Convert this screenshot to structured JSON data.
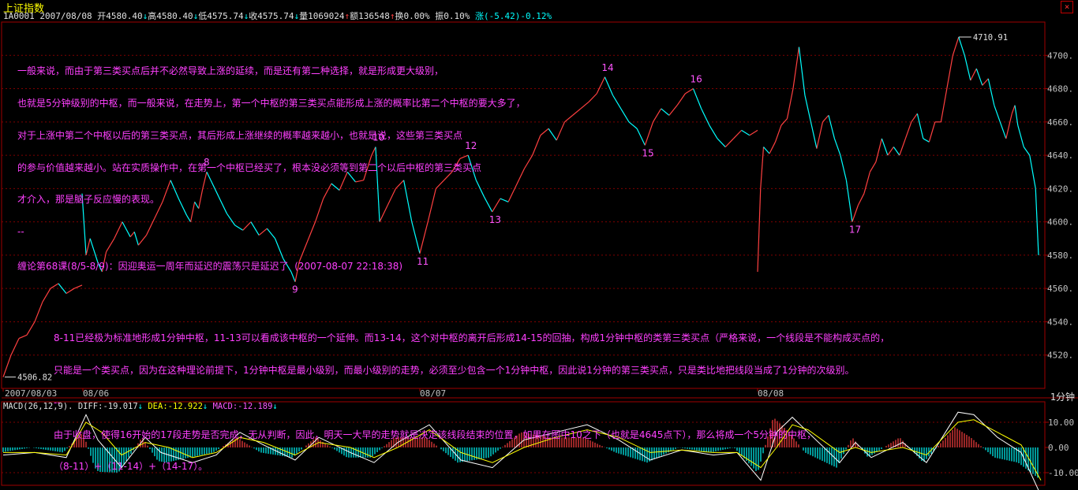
{
  "window": {
    "title": "上证指数",
    "close_glyph": "×"
  },
  "info_bar": {
    "code": "1A0001",
    "date": "2007/08/08",
    "open": "开4580.40",
    "high": "高4580.40",
    "low": "低4575.74",
    "close": "收4575.74",
    "volume": "量1069024",
    "amount": "额136548",
    "turnover": "换0.00%",
    "amplitude": "振0.10%",
    "change": "涨(-5.42)-0.12%"
  },
  "annotations": {
    "top_lines": [
      "一般来说，而由于第三类买点后并不必然导致上涨的延续，而是还有第二种选择，就是形成更大级别，",
      "也就是5分钟级别的中枢，而一般来说，在走势上，第一个中枢的第三类买点能形成上涨的概率比第二个中枢的要大多了，",
      "对于上涨中第二个中枢以后的第三类买点，其后形成上涨继续的概率越来越小，也就是说，这些第三类买点",
      "的参与价值越来越小。站在实质操作中，在第一个中枢已经买了，根本没必须等到第二个以后中枢的第三类买点",
      "才介入，那是脑子反应慢的表现。",
      "--",
      "缠论第68课(8/5-8/9)：因迎奥运一周年而延迟的震荡只是延迟了  (2007-08-07 22:18:38)"
    ],
    "bottom_lines": [
      "8-11已经极为标准地形成1分钟中枢，11-13可以看成该中枢的一个延伸。而13-14，这个对中枢的离开后形成14-15的回抽，构成1分钟中枢的类第三类买点（严格来说，一个线段是不能构成买点的，",
      "只能是一个类买点，因为在这种理论前提下，1分钟中枢是最小级别，而最小级别的走势，必须至少包含一个1分钟中枢，因此说1分钟的第三类买点，只是类比地把线段当成了1分钟的次级别。",
      "--",
      "由于收盘，使得16开始的17段走势是否完成，无从判断，因此，明天一大早的走势就是决定该线段结束的位置，如果在图中10之下（也就是4645点下），那么将成一个5分钟的中枢，",
      "（8-11）+（11-14）+（14-17）。"
    ]
  },
  "period_label": "1分钟",
  "macd": {
    "label": "MACD(26,12,9).",
    "diff": "DIFF:-19.017",
    "dea": "DEA:-12.922",
    "macd": "MACD:-12.189",
    "arrow_down": "↓",
    "ticks": [
      "10.00",
      "0.00",
      "-10.00"
    ]
  },
  "colors": {
    "up": "#ff4040",
    "down": "#00ffff",
    "text": "#ff40ff",
    "dea": "#ffff00",
    "diff": "#ffffff"
  },
  "chart_data": {
    "type": "line",
    "ylim": [
      4500,
      4720
    ],
    "yticks": [
      4520,
      4540,
      4560,
      4580,
      4600,
      4620,
      4640,
      4660,
      4680,
      4700
    ],
    "ytick_labels": [
      "4520.",
      "4540.",
      "4560.",
      "4580.",
      "4600.",
      "4620.",
      "4640.",
      "4660.",
      "4680.",
      "4700."
    ],
    "x_labels": [
      "2007/08/03",
      "08/06",
      "08/07",
      "08/08"
    ],
    "max_label": "4710.91",
    "min_label": "4506.82",
    "sessions": [
      [
        [
          0,
          4506.8
        ],
        [
          2,
          4520
        ],
        [
          4,
          4530
        ],
        [
          6,
          4532
        ],
        [
          8,
          4540
        ],
        [
          10,
          4552
        ],
        [
          12,
          4560
        ],
        [
          14,
          4563
        ],
        [
          16,
          4557
        ],
        [
          18,
          4560
        ],
        [
          20,
          4562
        ]
      ],
      [
        [
          0,
          4617
        ],
        [
          1,
          4580
        ],
        [
          2,
          4590
        ],
        [
          4,
          4575
        ],
        [
          5,
          4570
        ],
        [
          6,
          4582
        ],
        [
          8,
          4590
        ],
        [
          10,
          4600
        ],
        [
          12,
          4591
        ],
        [
          13,
          4594
        ],
        [
          14,
          4586
        ],
        [
          16,
          4592
        ],
        [
          18,
          4602
        ],
        [
          20,
          4612
        ],
        [
          22,
          4625
        ],
        [
          24,
          4614
        ],
        [
          26,
          4604
        ],
        [
          27,
          4600
        ],
        [
          28,
          4612
        ],
        [
          29,
          4608
        ],
        [
          30,
          4620
        ],
        [
          31,
          4630
        ],
        [
          32,
          4625
        ],
        [
          34,
          4615
        ],
        [
          36,
          4605
        ],
        [
          38,
          4598
        ],
        [
          40,
          4595
        ],
        [
          42,
          4600
        ],
        [
          44,
          4592
        ],
        [
          46,
          4596
        ],
        [
          48,
          4590
        ],
        [
          50,
          4578
        ],
        [
          52,
          4570
        ],
        [
          53,
          4564
        ],
        [
          54,
          4576
        ],
        [
          56,
          4588
        ],
        [
          58,
          4600
        ],
        [
          60,
          4614
        ],
        [
          62,
          4623
        ],
        [
          64,
          4619
        ],
        [
          66,
          4630
        ],
        [
          68,
          4624
        ],
        [
          70,
          4625
        ],
        [
          72,
          4640
        ],
        [
          73,
          4645
        ],
        [
          74,
          4600
        ],
        [
          76,
          4610
        ],
        [
          78,
          4620
        ],
        [
          80,
          4625
        ],
        [
          82,
          4600
        ],
        [
          84,
          4581
        ],
        [
          86,
          4600
        ],
        [
          88,
          4620
        ],
        [
          90,
          4625
        ],
        [
          92,
          4630
        ],
        [
          94,
          4638
        ],
        [
          96,
          4640
        ],
        [
          98,
          4625
        ],
        [
          100,
          4615
        ],
        [
          102,
          4606
        ],
        [
          104,
          4614
        ],
        [
          106,
          4612
        ],
        [
          108,
          4622
        ],
        [
          110,
          4632
        ],
        [
          112,
          4640
        ],
        [
          114,
          4652
        ],
        [
          116,
          4656
        ],
        [
          118,
          4649
        ],
        [
          120,
          4660
        ],
        [
          122,
          4664
        ],
        [
          124,
          4668
        ],
        [
          126,
          4672
        ],
        [
          128,
          4677
        ],
        [
          130,
          4687
        ],
        [
          132,
          4676
        ],
        [
          134,
          4668
        ],
        [
          136,
          4660
        ],
        [
          138,
          4656
        ],
        [
          140,
          4646
        ],
        [
          142,
          4660
        ],
        [
          144,
          4668
        ],
        [
          146,
          4664
        ],
        [
          148,
          4670
        ],
        [
          150,
          4677
        ],
        [
          152,
          4680
        ],
        [
          154,
          4668
        ],
        [
          156,
          4658
        ],
        [
          158,
          4650
        ],
        [
          160,
          4645
        ],
        [
          162,
          4650
        ],
        [
          164,
          4655
        ],
        [
          166,
          4652
        ],
        [
          168,
          4655
        ]
      ],
      [
        [
          0,
          4570
        ],
        [
          1,
          4620
        ],
        [
          2,
          4645
        ],
        [
          4,
          4641
        ],
        [
          6,
          4648
        ],
        [
          8,
          4658
        ],
        [
          10,
          4662
        ],
        [
          12,
          4680
        ],
        [
          14,
          4705
        ],
        [
          16,
          4676
        ],
        [
          18,
          4660
        ],
        [
          20,
          4644
        ],
        [
          22,
          4660
        ],
        [
          24,
          4664
        ],
        [
          26,
          4650
        ],
        [
          28,
          4640
        ],
        [
          30,
          4625
        ],
        [
          32,
          4600
        ],
        [
          34,
          4610
        ],
        [
          36,
          4617
        ],
        [
          38,
          4630
        ],
        [
          40,
          4636
        ],
        [
          42,
          4650
        ],
        [
          44,
          4640
        ],
        [
          46,
          4645
        ],
        [
          48,
          4640
        ],
        [
          50,
          4650
        ],
        [
          52,
          4660
        ],
        [
          54,
          4665
        ],
        [
          56,
          4650
        ],
        [
          58,
          4648
        ],
        [
          60,
          4660
        ],
        [
          62,
          4660
        ],
        [
          64,
          4680
        ],
        [
          66,
          4700
        ],
        [
          68,
          4711
        ],
        [
          70,
          4700
        ],
        [
          72,
          4685
        ],
        [
          74,
          4692
        ],
        [
          76,
          4682
        ],
        [
          78,
          4686
        ],
        [
          80,
          4670
        ],
        [
          82,
          4660
        ],
        [
          84,
          4650
        ],
        [
          86,
          4665
        ],
        [
          87,
          4670
        ],
        [
          88,
          4658
        ],
        [
          90,
          4645
        ],
        [
          92,
          4640
        ],
        [
          94,
          4620
        ],
        [
          95,
          4580
        ]
      ]
    ],
    "wave_labels": [
      {
        "text": "8",
        "session": 1,
        "x": 31,
        "y": 4630
      },
      {
        "text": "9",
        "session": 1,
        "x": 53,
        "y": 4564
      },
      {
        "text": "10",
        "session": 1,
        "x": 73,
        "y": 4645
      },
      {
        "text": "11",
        "session": 1,
        "x": 84,
        "y": 4581
      },
      {
        "text": "12",
        "session": 1,
        "x": 96,
        "y": 4640
      },
      {
        "text": "13",
        "session": 1,
        "x": 102,
        "y": 4606
      },
      {
        "text": "14",
        "session": 1,
        "x": 130,
        "y": 4687
      },
      {
        "text": "15",
        "session": 1,
        "x": 140,
        "y": 4646
      },
      {
        "text": "16",
        "session": 1,
        "x": 152,
        "y": 4680
      },
      {
        "text": "17",
        "session": 2,
        "x": 32,
        "y": 4600
      }
    ],
    "macd_ylim": [
      -15,
      15
    ],
    "macd_yticks": [
      10,
      0,
      -10
    ],
    "macd_diff": [
      [
        0,
        -3
      ],
      [
        40,
        -2
      ],
      [
        80,
        -4
      ],
      [
        105,
        13
      ],
      [
        120,
        3
      ],
      [
        150,
        -8
      ],
      [
        180,
        4
      ],
      [
        200,
        -2
      ],
      [
        240,
        -6
      ],
      [
        270,
        -3
      ],
      [
        300,
        6
      ],
      [
        330,
        1
      ],
      [
        370,
        -5
      ],
      [
        400,
        4
      ],
      [
        440,
        -2
      ],
      [
        470,
        -6
      ],
      [
        500,
        2
      ],
      [
        540,
        9
      ],
      [
        580,
        -5
      ],
      [
        620,
        -8
      ],
      [
        660,
        3
      ],
      [
        700,
        6
      ],
      [
        740,
        9
      ],
      [
        780,
        3
      ],
      [
        820,
        -5
      ],
      [
        860,
        -1
      ],
      [
        900,
        -3
      ],
      [
        930,
        -2
      ],
      [
        960,
        -13
      ],
      [
        980,
        6
      ],
      [
        1000,
        12
      ],
      [
        1020,
        6
      ],
      [
        1060,
        -6
      ],
      [
        1080,
        2
      ],
      [
        1100,
        -4
      ],
      [
        1140,
        2
      ],
      [
        1170,
        -6
      ],
      [
        1210,
        14
      ],
      [
        1230,
        13
      ],
      [
        1260,
        4
      ],
      [
        1290,
        -2
      ],
      [
        1315,
        -19
      ]
    ],
    "macd_dea": [
      [
        0,
        -2
      ],
      [
        40,
        -2
      ],
      [
        80,
        -3
      ],
      [
        105,
        10
      ],
      [
        125,
        6
      ],
      [
        150,
        -3
      ],
      [
        180,
        2
      ],
      [
        210,
        0
      ],
      [
        240,
        -4
      ],
      [
        270,
        -2
      ],
      [
        300,
        4
      ],
      [
        330,
        2
      ],
      [
        370,
        -3
      ],
      [
        400,
        2
      ],
      [
        440,
        0
      ],
      [
        470,
        -4
      ],
      [
        500,
        0
      ],
      [
        540,
        7
      ],
      [
        580,
        -2
      ],
      [
        620,
        -6
      ],
      [
        660,
        0
      ],
      [
        700,
        4
      ],
      [
        740,
        7
      ],
      [
        780,
        4
      ],
      [
        820,
        -2
      ],
      [
        860,
        -1
      ],
      [
        900,
        -2
      ],
      [
        930,
        -2
      ],
      [
        960,
        -8
      ],
      [
        980,
        0
      ],
      [
        1000,
        9
      ],
      [
        1020,
        7
      ],
      [
        1060,
        -2
      ],
      [
        1080,
        0
      ],
      [
        1100,
        -2
      ],
      [
        1140,
        0
      ],
      [
        1170,
        -3
      ],
      [
        1210,
        10
      ],
      [
        1230,
        11
      ],
      [
        1260,
        6
      ],
      [
        1290,
        1
      ],
      [
        1315,
        -13
      ]
    ]
  }
}
